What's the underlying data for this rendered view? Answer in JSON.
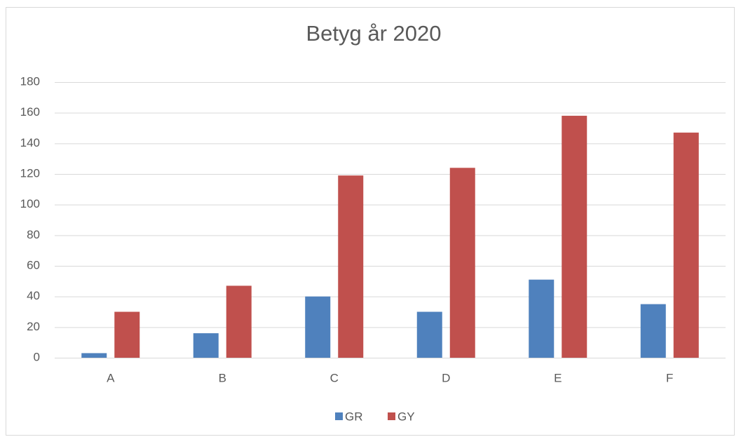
{
  "chart_data": {
    "type": "bar",
    "title": "Betyg år 2020",
    "categories": [
      "A",
      "B",
      "C",
      "D",
      "E",
      "F"
    ],
    "series": [
      {
        "name": "GR",
        "color": "#4f81bd",
        "values": [
          3,
          16,
          40,
          30,
          51,
          35
        ]
      },
      {
        "name": "GY",
        "color": "#c0504d",
        "values": [
          30,
          47,
          119,
          124,
          158,
          147
        ]
      }
    ],
    "ylim": [
      0,
      180
    ],
    "yticks": [
      0,
      20,
      40,
      60,
      80,
      100,
      120,
      140,
      160,
      180
    ],
    "grid": true,
    "legend": "bottom"
  }
}
